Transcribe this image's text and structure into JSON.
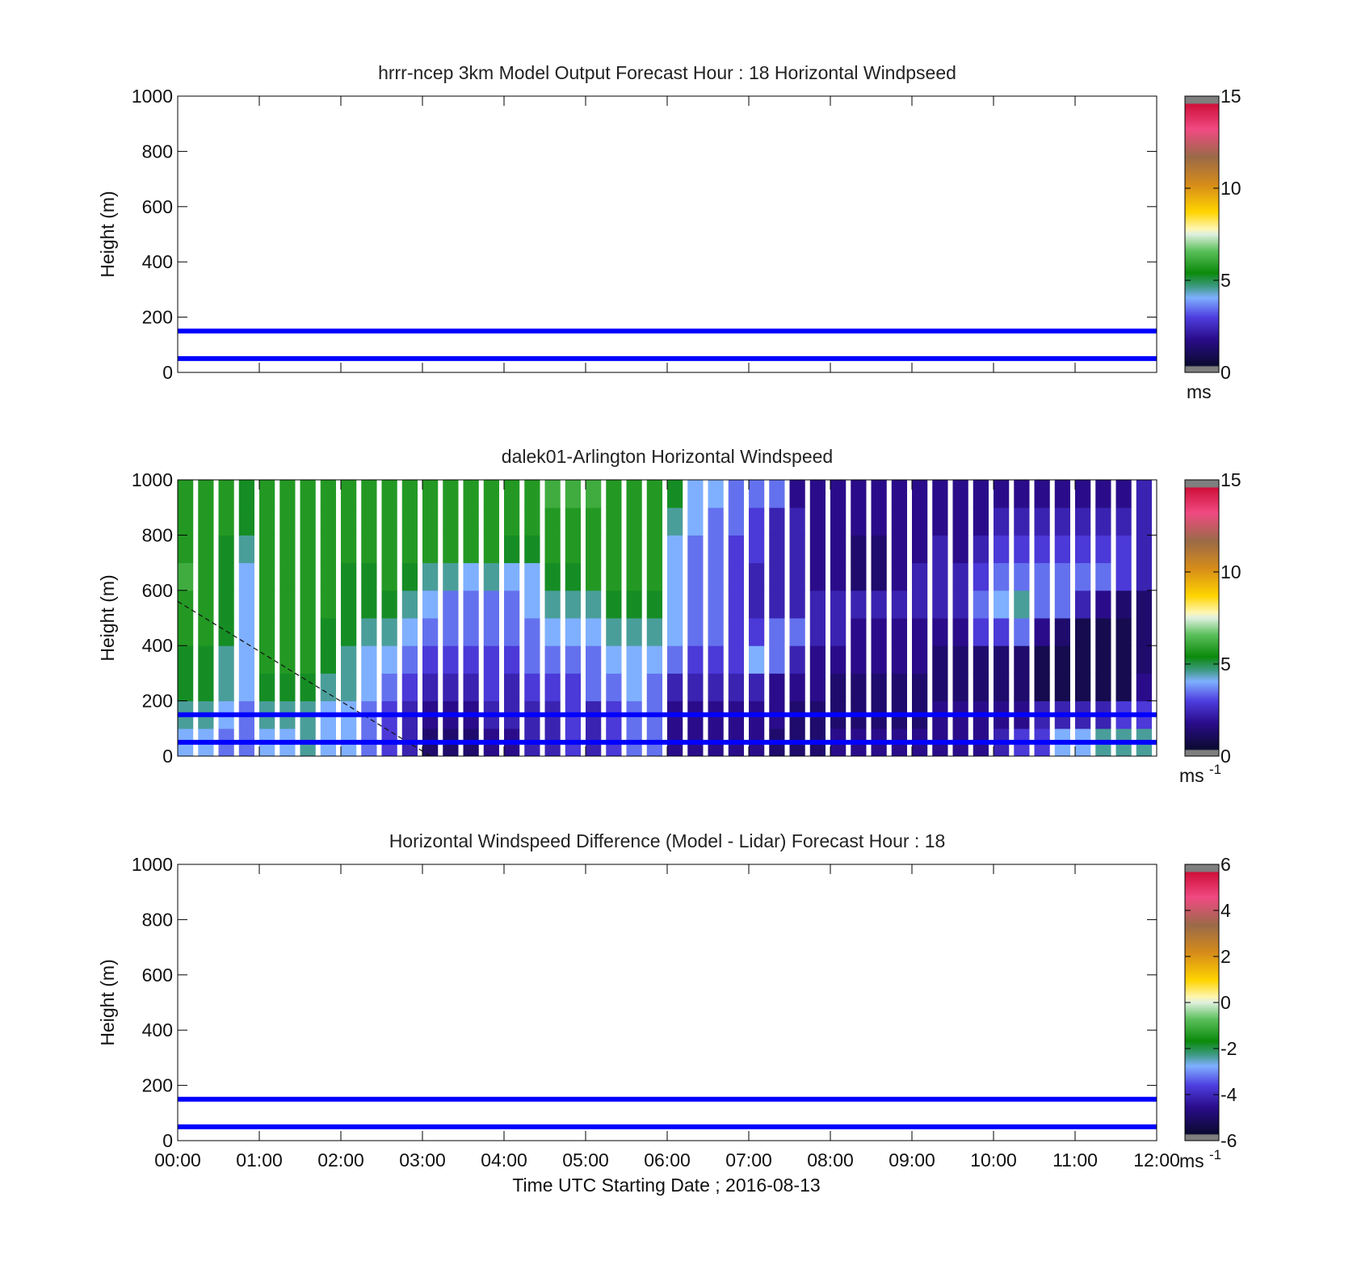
{
  "chart_data": [
    {
      "type": "heatmap",
      "title": "hrrr-ncep 3km Model Output   Forecast Hour : 18 Horizontal Windpseed",
      "ylabel": "Height (m)",
      "xlabel": "",
      "ylim": [
        0,
        1000
      ],
      "yticks": [
        "0",
        "200",
        "400",
        "600",
        "800",
        "1000"
      ],
      "xlim_hours": [
        0,
        12
      ],
      "hlines_m": [
        50,
        150
      ],
      "colorbar": {
        "ticks": [
          "0",
          "5",
          "10",
          "15"
        ],
        "range": [
          0,
          15
        ],
        "unit": "ms",
        "unit_sup": ""
      },
      "values": []
    },
    {
      "type": "heatmap",
      "title": "dalek01-Arlington  Horizontal Windspeed",
      "ylabel": "Height (m)",
      "xlabel": "",
      "ylim": [
        0,
        1000
      ],
      "yticks": [
        "0",
        "200",
        "400",
        "600",
        "800",
        "1000"
      ],
      "xlim_hours": [
        0,
        12
      ],
      "hlines_m": [
        50,
        150
      ],
      "colorbar": {
        "ticks": [
          "0",
          "5",
          "10",
          "15"
        ],
        "range": [
          0,
          15
        ],
        "unit": "ms",
        "unit_sup": "-1"
      },
      "time_columns_hours": [
        0.0,
        0.25,
        0.5,
        0.75,
        1.0,
        1.25,
        1.5,
        1.75,
        2.0,
        2.25,
        2.5,
        2.75,
        3.0,
        3.25,
        3.5,
        3.75,
        4.0,
        4.25,
        4.5,
        4.75,
        5.0,
        5.25,
        5.5,
        5.75,
        6.0,
        6.25,
        6.5,
        6.75,
        7.0,
        7.25,
        7.5,
        7.75,
        8.0,
        8.25,
        8.5,
        8.75,
        9.0,
        9.25,
        9.5,
        9.75,
        10.0,
        10.25,
        10.5,
        10.75,
        11.0,
        11.25,
        11.5,
        11.75
      ],
      "profile_heights_m": [
        50,
        150,
        250,
        350,
        450,
        550,
        650,
        750,
        850,
        950
      ],
      "values_mps": [
        [
          3.5,
          4.0,
          4.5,
          4.5,
          5.0,
          5.0,
          5.5,
          5.0,
          5.0,
          5.0
        ],
        [
          3.5,
          4.0,
          4.5,
          4.5,
          5.0,
          5.0,
          5.0,
          5.0,
          5.0,
          5.0
        ],
        [
          3.0,
          3.5,
          4.0,
          4.0,
          4.5,
          4.5,
          4.5,
          4.5,
          5.0,
          5.0
        ],
        [
          3.0,
          3.0,
          3.5,
          3.5,
          3.5,
          3.5,
          3.5,
          4.0,
          4.5,
          4.5
        ],
        [
          3.5,
          4.0,
          4.5,
          5.0,
          5.0,
          5.0,
          5.0,
          5.0,
          5.0,
          5.0
        ],
        [
          3.5,
          4.0,
          4.5,
          5.0,
          5.0,
          5.0,
          5.0,
          5.0,
          5.0,
          5.0
        ],
        [
          4.0,
          4.0,
          4.5,
          5.0,
          5.0,
          5.0,
          5.0,
          5.0,
          5.0,
          5.0
        ],
        [
          3.5,
          3.5,
          4.0,
          4.5,
          4.5,
          5.0,
          5.0,
          5.0,
          5.0,
          5.0
        ],
        [
          3.5,
          3.5,
          4.0,
          4.0,
          4.5,
          4.5,
          4.5,
          5.0,
          5.0,
          5.0
        ],
        [
          3.0,
          3.0,
          3.5,
          3.5,
          4.0,
          4.5,
          4.5,
          5.0,
          5.0,
          5.0
        ],
        [
          2.5,
          2.5,
          3.0,
          3.5,
          4.0,
          4.5,
          5.0,
          5.0,
          5.0,
          5.0
        ],
        [
          2.0,
          2.0,
          2.5,
          3.0,
          3.5,
          4.0,
          4.5,
          5.0,
          5.0,
          5.0
        ],
        [
          1.0,
          1.5,
          2.0,
          2.5,
          3.0,
          3.5,
          4.0,
          5.0,
          5.0,
          5.0
        ],
        [
          1.0,
          1.5,
          2.0,
          2.5,
          3.0,
          3.0,
          4.0,
          5.0,
          5.0,
          5.0
        ],
        [
          1.0,
          1.5,
          2.0,
          2.5,
          3.0,
          3.0,
          3.5,
          5.0,
          5.0,
          5.0
        ],
        [
          1.5,
          2.0,
          2.5,
          2.5,
          3.0,
          3.0,
          4.0,
          5.0,
          5.0,
          5.0
        ],
        [
          1.5,
          2.0,
          2.0,
          2.5,
          3.0,
          3.0,
          3.5,
          4.5,
          5.0,
          5.0
        ],
        [
          2.0,
          2.0,
          2.5,
          3.0,
          3.0,
          3.5,
          3.5,
          4.5,
          5.0,
          5.0
        ],
        [
          2.0,
          2.0,
          2.5,
          3.0,
          3.5,
          4.0,
          4.5,
          5.0,
          5.0,
          5.5
        ],
        [
          2.5,
          2.5,
          2.5,
          3.0,
          3.5,
          4.0,
          4.5,
          5.0,
          5.0,
          5.5
        ],
        [
          2.0,
          2.0,
          3.0,
          3.0,
          3.5,
          4.0,
          5.0,
          5.0,
          5.0,
          5.5
        ],
        [
          2.5,
          2.5,
          3.0,
          3.5,
          4.0,
          4.5,
          5.0,
          5.0,
          5.0,
          5.0
        ],
        [
          3.0,
          3.0,
          3.5,
          3.5,
          4.0,
          4.5,
          5.0,
          5.0,
          5.0,
          5.0
        ],
        [
          3.0,
          3.0,
          3.0,
          3.5,
          4.0,
          4.5,
          5.0,
          5.0,
          5.0,
          5.0
        ],
        [
          1.5,
          1.5,
          2.0,
          3.0,
          3.5,
          3.5,
          3.5,
          3.5,
          4.0,
          4.5
        ],
        [
          1.5,
          1.5,
          2.0,
          2.5,
          3.0,
          3.0,
          3.0,
          3.0,
          3.5,
          3.5
        ],
        [
          1.5,
          1.5,
          2.0,
          2.5,
          3.0,
          3.0,
          3.0,
          3.0,
          3.0,
          3.5
        ],
        [
          1.5,
          1.5,
          2.0,
          2.5,
          2.5,
          2.5,
          2.5,
          2.5,
          3.0,
          3.0
        ],
        [
          1.5,
          1.5,
          2.0,
          3.5,
          2.5,
          2.0,
          2.0,
          2.5,
          2.5,
          3.0
        ],
        [
          1.0,
          1.5,
          1.5,
          3.0,
          3.0,
          2.0,
          2.0,
          2.0,
          2.0,
          3.0
        ],
        [
          1.0,
          1.0,
          1.5,
          2.0,
          3.0,
          2.0,
          2.0,
          2.0,
          2.0,
          1.5
        ],
        [
          1.0,
          1.0,
          1.5,
          1.5,
          2.0,
          2.0,
          1.5,
          1.5,
          1.5,
          1.5
        ],
        [
          1.5,
          1.0,
          1.0,
          1.5,
          2.0,
          2.0,
          1.5,
          1.5,
          1.5,
          1.5
        ],
        [
          1.5,
          1.0,
          1.0,
          1.5,
          1.5,
          2.0,
          1.0,
          1.0,
          1.5,
          1.5
        ],
        [
          1.5,
          1.0,
          1.0,
          1.5,
          1.5,
          2.0,
          1.0,
          1.0,
          1.5,
          1.5
        ],
        [
          1.5,
          1.0,
          1.0,
          1.5,
          1.5,
          2.0,
          1.5,
          1.5,
          1.5,
          1.5
        ],
        [
          1.5,
          1.0,
          1.0,
          1.5,
          1.5,
          2.0,
          2.0,
          1.5,
          1.5,
          1.5
        ],
        [
          1.5,
          1.5,
          1.0,
          1.0,
          1.5,
          2.0,
          2.0,
          2.0,
          1.5,
          1.5
        ],
        [
          1.5,
          1.5,
          1.0,
          1.0,
          1.5,
          2.0,
          2.0,
          1.5,
          1.5,
          1.5
        ],
        [
          1.5,
          1.5,
          1.0,
          1.0,
          2.5,
          3.0,
          2.5,
          2.0,
          1.5,
          1.5
        ],
        [
          2.0,
          1.5,
          1.0,
          1.0,
          2.5,
          3.5,
          3.0,
          2.5,
          2.0,
          1.5
        ],
        [
          2.5,
          1.5,
          1.0,
          1.0,
          3.0,
          4.0,
          3.0,
          2.5,
          2.0,
          1.5
        ],
        [
          2.5,
          2.0,
          0.5,
          0.5,
          1.5,
          3.0,
          3.0,
          2.5,
          2.0,
          1.5
        ],
        [
          3.5,
          2.0,
          0.5,
          0.5,
          1.0,
          3.0,
          3.0,
          2.5,
          2.0,
          1.5
        ],
        [
          3.5,
          2.0,
          0.5,
          0.5,
          0.5,
          2.0,
          3.0,
          2.5,
          2.0,
          1.5
        ],
        [
          4.0,
          2.0,
          0.5,
          0.5,
          0.5,
          1.5,
          3.0,
          2.5,
          2.0,
          1.5
        ],
        [
          4.0,
          2.5,
          0.5,
          0.5,
          0.5,
          1.0,
          2.5,
          2.5,
          2.0,
          1.5
        ],
        [
          4.0,
          2.5,
          1.5,
          1.0,
          1.0,
          1.0,
          2.0,
          2.0,
          2.0,
          2.0
        ]
      ],
      "dashed_line": {
        "from_hours_m": [
          0.0,
          560
        ],
        "to_hours_m": [
          3.1,
          0
        ]
      }
    },
    {
      "type": "heatmap",
      "title": "Horizontal Windspeed Difference (Model - Lidar) Forecast Hour : 18",
      "ylabel": "Height (m)",
      "xlabel": "Time UTC  Starting Date ; 2016-08-13",
      "ylim": [
        0,
        1000
      ],
      "yticks": [
        "0",
        "200",
        "400",
        "600",
        "800",
        "1000"
      ],
      "xlim_hours": [
        0,
        12
      ],
      "xticks": [
        "00:00",
        "01:00",
        "02:00",
        "03:00",
        "04:00",
        "05:00",
        "06:00",
        "07:00",
        "08:00",
        "09:00",
        "10:00",
        "11:00",
        "12:00"
      ],
      "hlines_m": [
        50,
        150
      ],
      "colorbar": {
        "ticks": [
          "-6",
          "-4",
          "-2",
          "0",
          "2",
          "4",
          "6"
        ],
        "range": [
          -6,
          6
        ],
        "unit": "ms",
        "unit_sup": "-1"
      },
      "values": []
    }
  ]
}
